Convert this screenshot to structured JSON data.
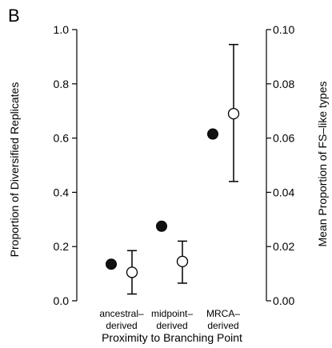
{
  "panel_label": "B",
  "chart_data": {
    "type": "scatter",
    "title": "",
    "xlabel": "Proximity to Branching Point",
    "ylabel": "Proportion of Diversified Replicates",
    "y2label": "Mean Proportion of FS–like types",
    "categories": [
      [
        "ancestral–",
        "derived"
      ],
      [
        "midpoint–",
        "derived"
      ],
      [
        "MRCA–",
        "derived"
      ]
    ],
    "ylim": [
      0,
      1.0
    ],
    "y2lim": [
      0,
      0.1
    ],
    "yticks": [
      "0.0",
      "0.2",
      "0.4",
      "0.6",
      "0.8",
      "1.0"
    ],
    "y2ticks": [
      "0.00",
      "0.02",
      "0.04",
      "0.06",
      "0.08",
      "0.10"
    ],
    "grid": false,
    "legend": "none",
    "series": [
      {
        "marker": "filled-circle",
        "axis": "left",
        "values": [
          0.135,
          0.275,
          0.615
        ]
      },
      {
        "marker": "open-circle",
        "axis": "right",
        "values": [
          0.0105,
          0.0145,
          0.069
        ],
        "error_low": [
          0.0025,
          0.0065,
          0.044
        ],
        "error_high": [
          0.0185,
          0.022,
          0.0945
        ]
      }
    ]
  }
}
